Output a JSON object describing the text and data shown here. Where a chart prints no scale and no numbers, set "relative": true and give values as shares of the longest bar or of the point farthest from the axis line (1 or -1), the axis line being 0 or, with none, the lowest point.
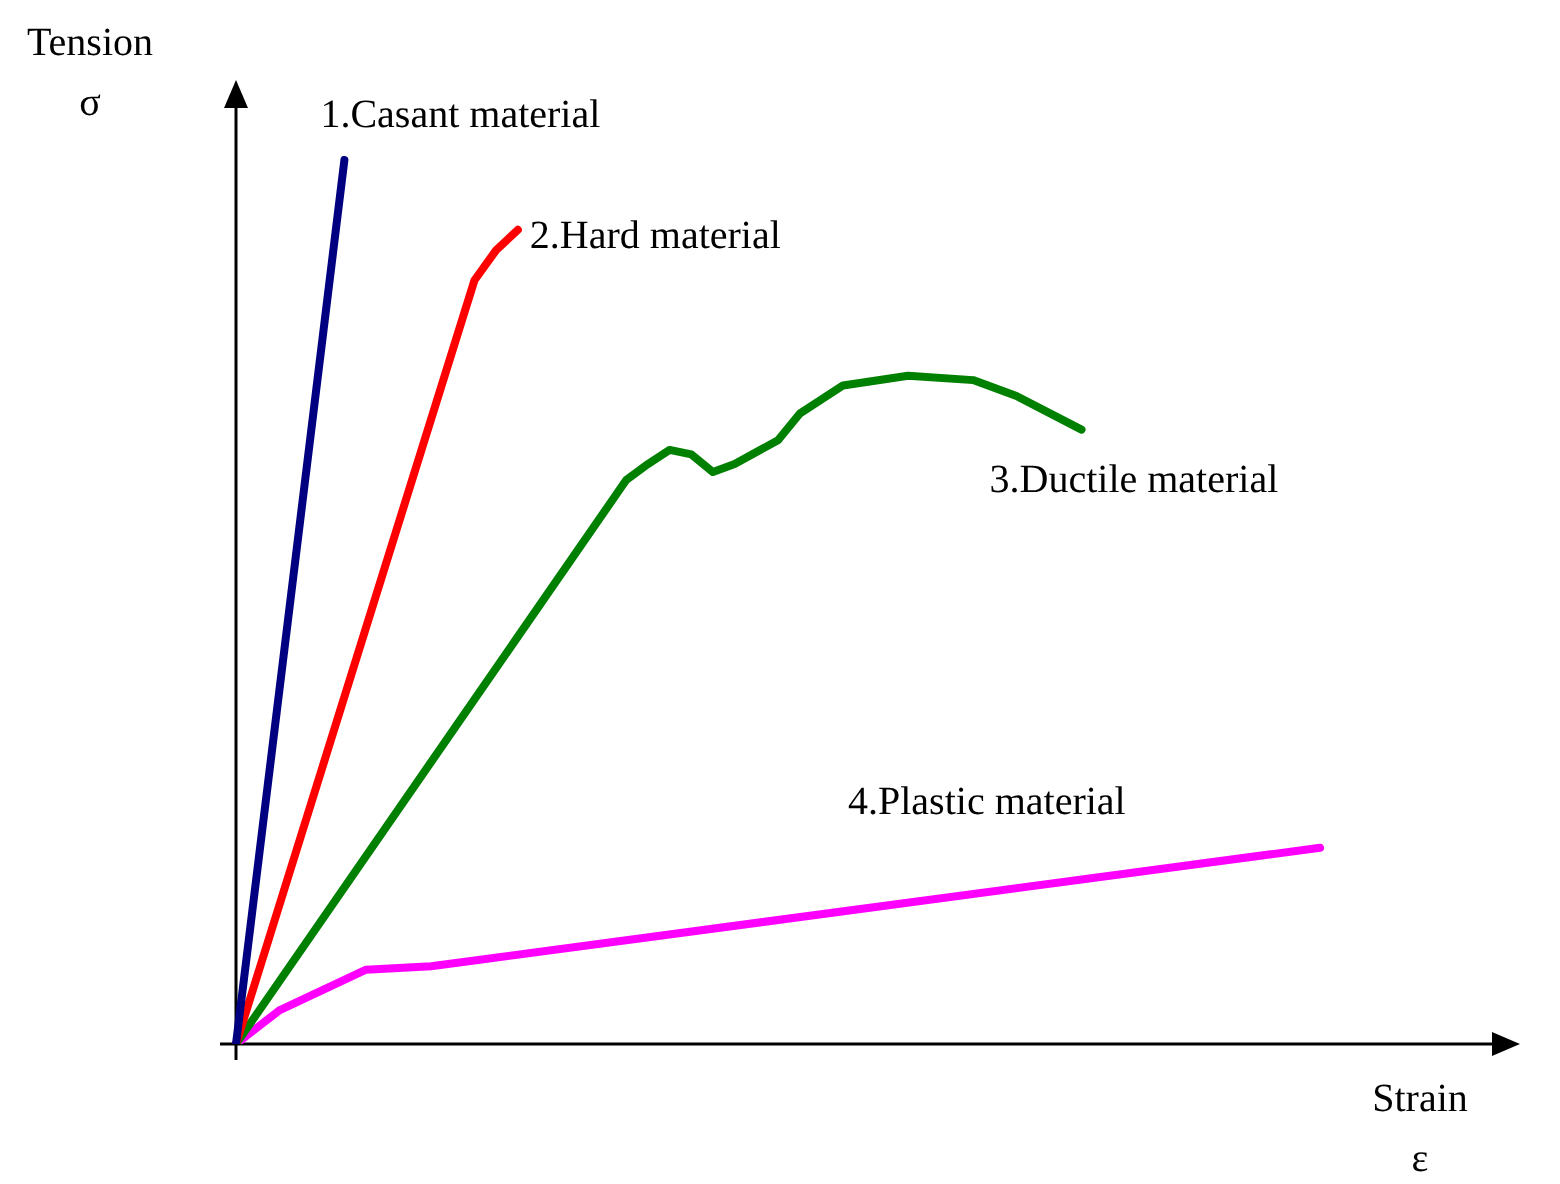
{
  "chart_data": {
    "type": "line",
    "relative": true,
    "xlabel": "Strain\nε",
    "ylabel": "Tension\nσ",
    "legend": false,
    "marker": "none",
    "line_style": "solid",
    "categories": [
      null,
      null,
      null,
      null,
      null,
      null,
      null,
      null,
      null,
      null,
      null,
      null,
      null,
      null,
      null,
      null,
      null,
      null,
      null,
      null,
      null,
      null,
      null,
      null,
      null,
      null,
      null,
      null,
      null,
      null,
      null,
      null,
      null,
      null,
      null,
      null,
      null,
      null,
      null,
      null,
      null,
      null,
      null,
      null,
      null,
      null,
      null,
      null,
      null,
      null,
      null
    ],
    "series": [
      {
        "name": "1.Casant material",
        "color": "#000080",
        "values": [
          0,
          null,
          null,
          null,
          null,
          1,
          null,
          null,
          null,
          null,
          null,
          null,
          null,
          null,
          null,
          null,
          null,
          null,
          null,
          null,
          null,
          null,
          null,
          null,
          null,
          null,
          null,
          null,
          null,
          null,
          null,
          null,
          null,
          null,
          null,
          null,
          null,
          null,
          null,
          null,
          null,
          null,
          null,
          null,
          null,
          null,
          null,
          null,
          null,
          null,
          null
        ]
      },
      {
        "name": "2.Hard material",
        "color": "#ff0000",
        "values": [
          0,
          null,
          null,
          null,
          null,
          null,
          null,
          null,
          null,
          null,
          null,
          0.864,
          0.898,
          0.921,
          null,
          null,
          null,
          null,
          null,
          null,
          null,
          null,
          null,
          null,
          null,
          null,
          null,
          null,
          null,
          null,
          null,
          null,
          null,
          null,
          null,
          null,
          null,
          null,
          null,
          null,
          null,
          null,
          null,
          null,
          null,
          null,
          null,
          null,
          null,
          null,
          null
        ]
      },
      {
        "name": "3.Ductile material",
        "color": "#008000",
        "values": [
          0,
          null,
          null,
          null,
          null,
          null,
          null,
          null,
          null,
          null,
          null,
          null,
          null,
          null,
          null,
          null,
          null,
          null,
          0.638,
          0.656,
          0.672,
          0.667,
          0.647,
          0.656,
          null,
          0.683,
          0.713,
          null,
          0.745,
          null,
          null,
          0.756,
          null,
          null,
          0.751,
          null,
          0.733,
          null,
          null,
          0.695,
          null,
          null,
          null,
          null,
          null,
          null,
          null,
          null,
          null,
          null,
          null
        ]
      },
      {
        "name": "4.Plastic material",
        "color": "#ff00ff",
        "values": [
          0,
          null,
          0.038,
          null,
          null,
          null,
          0.084,
          null,
          null,
          0.088,
          null,
          null,
          null,
          null,
          null,
          null,
          null,
          null,
          null,
          null,
          null,
          null,
          null,
          null,
          null,
          null,
          null,
          null,
          null,
          null,
          null,
          null,
          null,
          null,
          null,
          null,
          null,
          null,
          null,
          null,
          null,
          null,
          null,
          null,
          null,
          null,
          null,
          null,
          null,
          null,
          0.222
        ]
      }
    ]
  }
}
